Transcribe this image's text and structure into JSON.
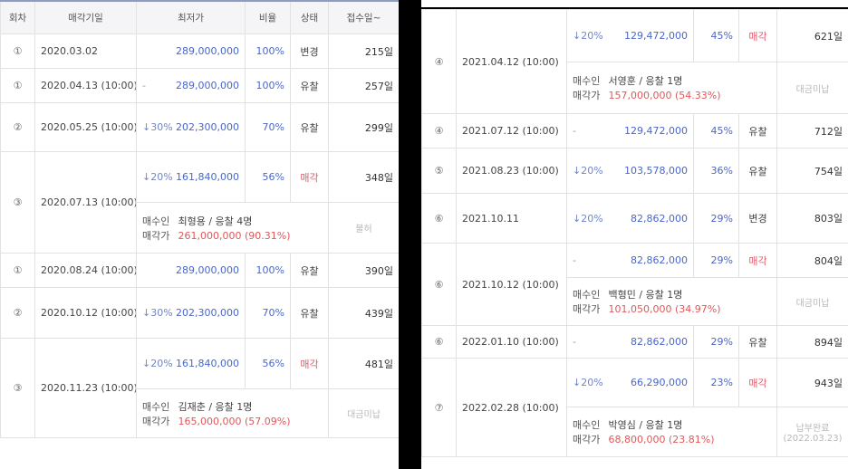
{
  "left": {
    "headers": [
      "회차",
      "매각기일",
      "최저가",
      "비율",
      "상태",
      "접수일~"
    ],
    "rows": [
      {
        "round": "①",
        "date": "2020.03.02",
        "drop": "",
        "min_price": "289,000,000",
        "rate": "100%",
        "status": "변경",
        "status_type": "normal",
        "days": "215일"
      },
      {
        "round": "①",
        "date": "2020.04.13 (10:00)",
        "drop": "-",
        "min_price": "289,000,000",
        "rate": "100%",
        "status": "유찰",
        "status_type": "normal",
        "days": "257일"
      },
      {
        "round": "②",
        "date": "2020.05.25 (10:00)",
        "drop": "↓30%",
        "min_price": "202,300,000",
        "rate": "70%",
        "status": "유찰",
        "status_type": "normal",
        "days": "299일"
      },
      {
        "round": "③",
        "date": "2020.07.13 (10:00)",
        "drop": "↓20%",
        "min_price": "161,840,000",
        "rate": "56%",
        "status": "매각",
        "status_type": "sold",
        "days": "348일",
        "buyer": {
          "label1": "매수인",
          "buyer": "최형용 / 응찰 4명",
          "label2": "매각가",
          "price": "261,000,000 (90.31%)",
          "note": "불허"
        }
      },
      {
        "round": "①",
        "date": "2020.08.24 (10:00)",
        "drop": "",
        "min_price": "289,000,000",
        "rate": "100%",
        "status": "유찰",
        "status_type": "normal",
        "days": "390일"
      },
      {
        "round": "②",
        "date": "2020.10.12 (10:00)",
        "drop": "↓30%",
        "min_price": "202,300,000",
        "rate": "70%",
        "status": "유찰",
        "status_type": "normal",
        "days": "439일"
      },
      {
        "round": "③",
        "date": "2020.11.23 (10:00)",
        "drop": "↓20%",
        "min_price": "161,840,000",
        "rate": "56%",
        "status": "매각",
        "status_type": "sold",
        "days": "481일",
        "buyer": {
          "label1": "매수인",
          "buyer": "김재춘 / 응찰 1명",
          "label2": "매각가",
          "price": "165,000,000 (57.09%)",
          "note": "대금미납"
        }
      }
    ]
  },
  "right": {
    "rows": [
      {
        "round": "④",
        "date": "2021.04.12 (10:00)",
        "drop": "↓20%",
        "min_price": "129,472,000",
        "rate": "45%",
        "status": "매각",
        "status_type": "sold",
        "days": "621일",
        "buyer": {
          "label1": "매수인",
          "buyer": "서영훈 / 응찰 1명",
          "label2": "매각가",
          "price": "157,000,000 (54.33%)",
          "note": "대금미납"
        }
      },
      {
        "round": "④",
        "date": "2021.07.12 (10:00)",
        "drop": "-",
        "min_price": "129,472,000",
        "rate": "45%",
        "status": "유찰",
        "status_type": "normal",
        "days": "712일"
      },
      {
        "round": "⑤",
        "date": "2021.08.23 (10:00)",
        "drop": "↓20%",
        "min_price": "103,578,000",
        "rate": "36%",
        "status": "유찰",
        "status_type": "normal",
        "days": "754일"
      },
      {
        "round": "⑥",
        "date": "2021.10.11",
        "drop": "↓20%",
        "min_price": "82,862,000",
        "rate": "29%",
        "status": "변경",
        "status_type": "normal",
        "days": "803일"
      },
      {
        "round": "⑥",
        "date": "2021.10.12 (10:00)",
        "drop": "-",
        "min_price": "82,862,000",
        "rate": "29%",
        "status": "매각",
        "status_type": "sold",
        "days": "804일",
        "buyer": {
          "label1": "매수인",
          "buyer": "백형민 / 응찰 1명",
          "label2": "매각가",
          "price": "101,050,000 (34.97%)",
          "note": "대금미납"
        }
      },
      {
        "round": "⑥",
        "date": "2022.01.10 (10:00)",
        "drop": "-",
        "min_price": "82,862,000",
        "rate": "29%",
        "status": "유찰",
        "status_type": "normal",
        "days": "894일"
      },
      {
        "round": "⑦",
        "date": "2022.02.28 (10:00)",
        "drop": "↓20%",
        "min_price": "66,290,000",
        "rate": "23%",
        "status": "매각",
        "status_type": "sold",
        "days": "943일",
        "buyer": {
          "label1": "매수인",
          "buyer": "박영심 / 응찰 1명",
          "label2": "매각가",
          "price": "68,800,000 (23.81%)",
          "note": "납부완료",
          "note2": "(2022.03.23)"
        }
      }
    ]
  },
  "colors": {
    "blue": "#4a67c9",
    "red": "#e05a6a",
    "header_bg": "#f5f5f7"
  }
}
